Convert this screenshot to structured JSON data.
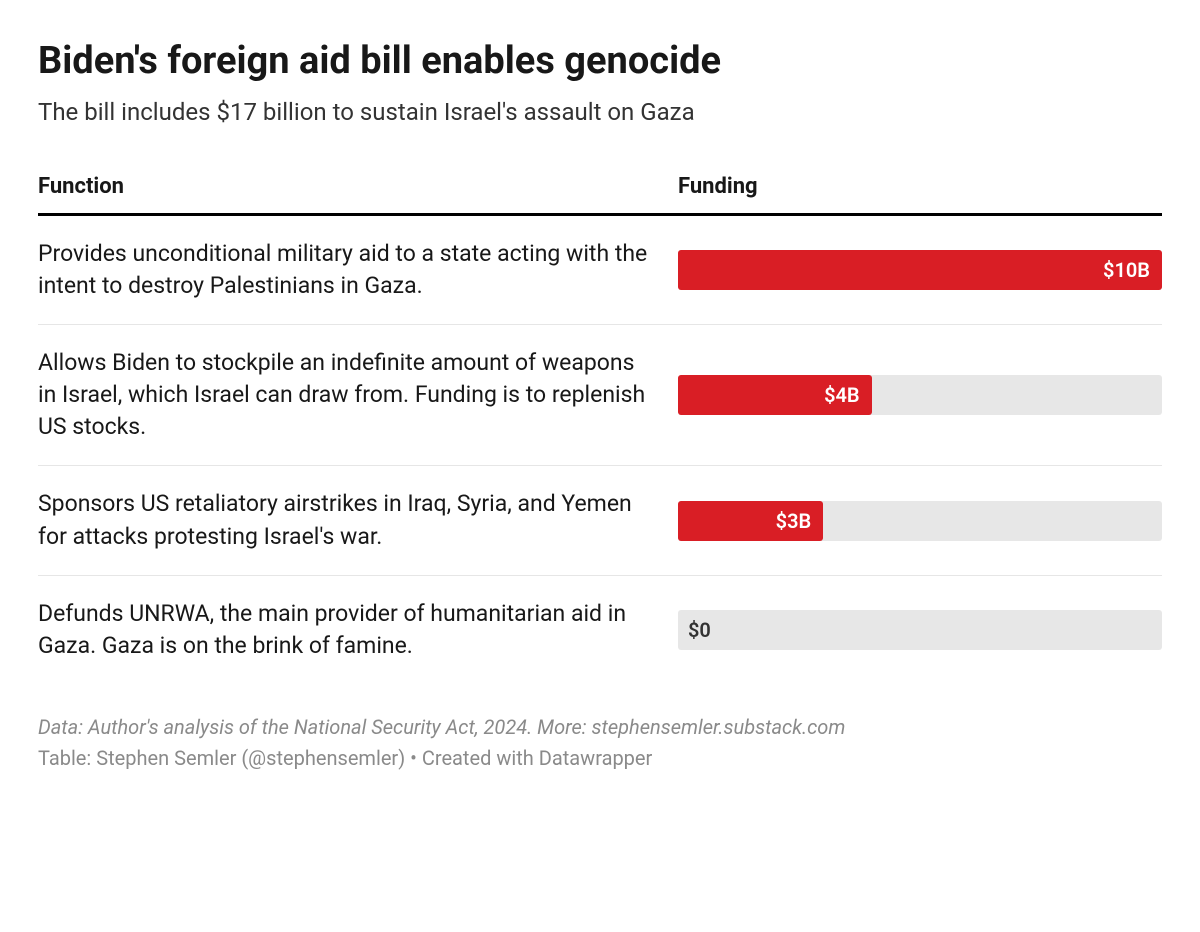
{
  "title": "Biden's foreign aid bill enables genocide",
  "subtitle": "The bill includes $17 billion to sustain Israel's assault on Gaza",
  "columns": {
    "function": "Function",
    "funding": "Funding"
  },
  "styling": {
    "bar_bg_color": "#e7e7e7",
    "bar_fill_color": "#d91e25",
    "bar_text_inside_color": "#ffffff",
    "bar_text_outside_color": "#333333",
    "max_value": 10,
    "title_fontsize": 38,
    "subtitle_fontsize": 24,
    "body_fontsize": 23,
    "footer_fontsize": 20,
    "border_color": "#000000"
  },
  "rows": [
    {
      "function": "Provides unconditional military aid to a state acting with the intent to destroy Palestinians in Gaza.",
      "value": 10,
      "label": "$10B",
      "label_inside": true
    },
    {
      "function": "Allows Biden to stockpile an indefinite amount of weapons in Israel, which Israel can draw from. Funding is to replenish US stocks.",
      "value": 4,
      "label": "$4B",
      "label_inside": true
    },
    {
      "function": "Sponsors US retaliatory airstrikes in Iraq, Syria, and Yemen for attacks protesting Israel's war.",
      "value": 3,
      "label": "$3B",
      "label_inside": true
    },
    {
      "function": "Defunds UNRWA, the main provider of humanitarian aid in Gaza. Gaza is on the brink of famine.",
      "value": 0,
      "label": "$0",
      "label_inside": false
    }
  ],
  "footer": {
    "line1": "Data: Author's analysis of the National Security Act, 2024. More: stephensemler.substack.com",
    "line2": "Table: Stephen Semler (@stephensemler) • Created with Datawrapper"
  }
}
